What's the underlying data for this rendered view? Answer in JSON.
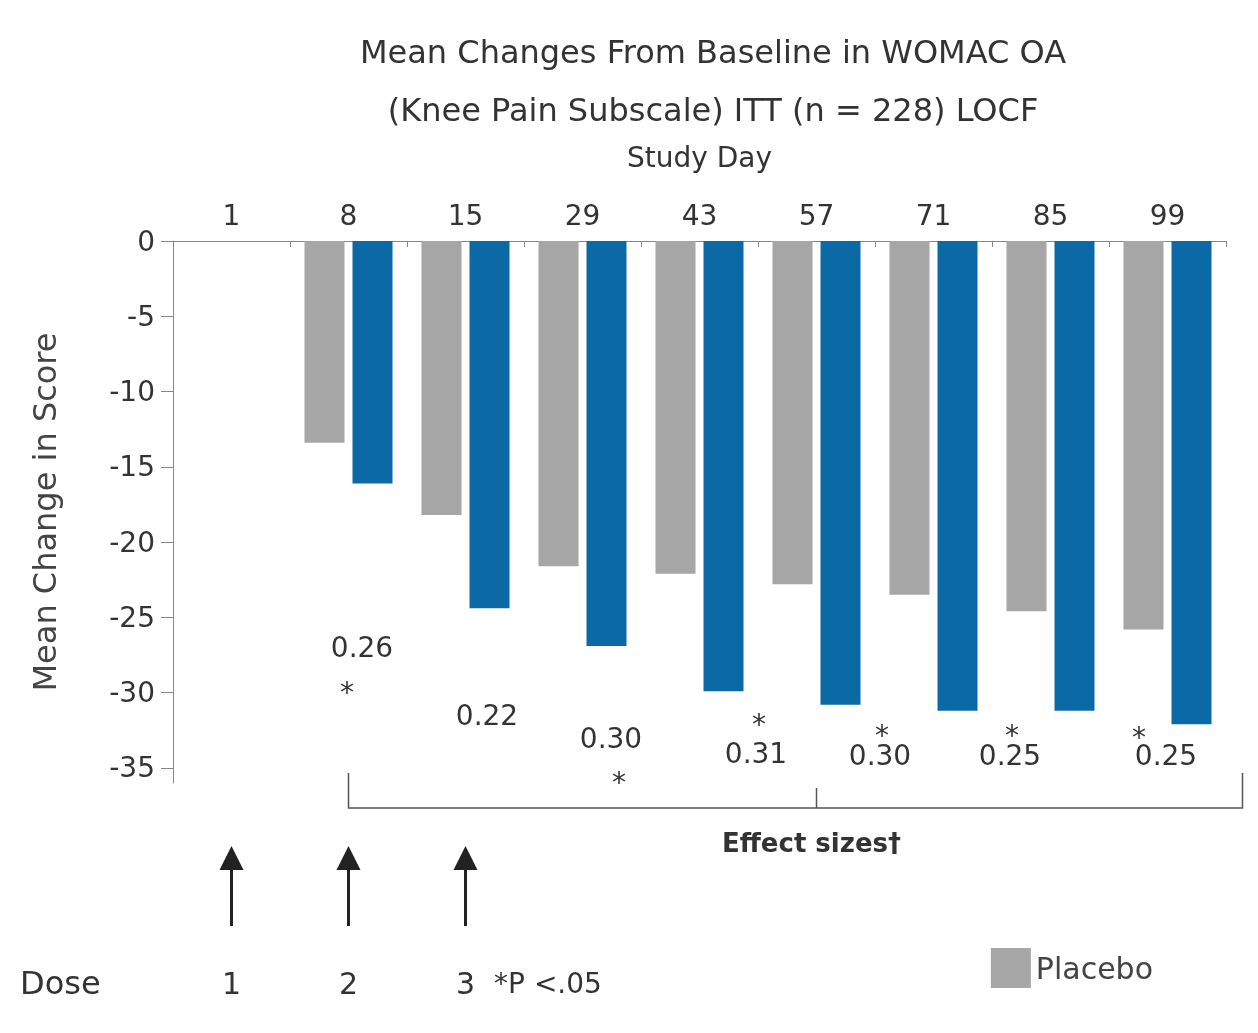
{
  "chart_data": {
    "type": "bar",
    "title": "Mean Changes From Baseline in WOMAC OA\n(Knee Pain Subscale) ITT (n = 228) LOCF",
    "xlabel": "Study Day",
    "ylabel": "Mean Change in Score",
    "categories": [
      "1",
      "8",
      "15",
      "29",
      "43",
      "57",
      "71",
      "85",
      "99"
    ],
    "series": [
      {
        "name": "Placebo",
        "color": "#a6a6a6",
        "values": [
          null,
          -13.4,
          -18.2,
          -21.6,
          -22.1,
          -22.8,
          -23.5,
          -24.6,
          -25.8
        ]
      },
      {
        "color": "#0b6aa6",
        "values": [
          null,
          -16.1,
          -24.4,
          -26.9,
          -29.9,
          -30.8,
          -31.2,
          -31.2,
          -32.1
        ]
      }
    ],
    "ylim": [
      -36,
      0
    ],
    "yticks": [
      0,
      -5,
      -10,
      -15,
      -20,
      -25,
      -30,
      -35
    ],
    "grid": false,
    "legend": "bottom right",
    "annotations": [
      "0.26",
      "*",
      "0.22",
      "0.30",
      "*",
      "*",
      "0.31",
      "*",
      "0.30",
      "*",
      "0.25",
      "*",
      "0.25",
      "Effect sizes†",
      "Dose",
      "1",
      "2",
      "3",
      "*P <.05"
    ]
  }
}
